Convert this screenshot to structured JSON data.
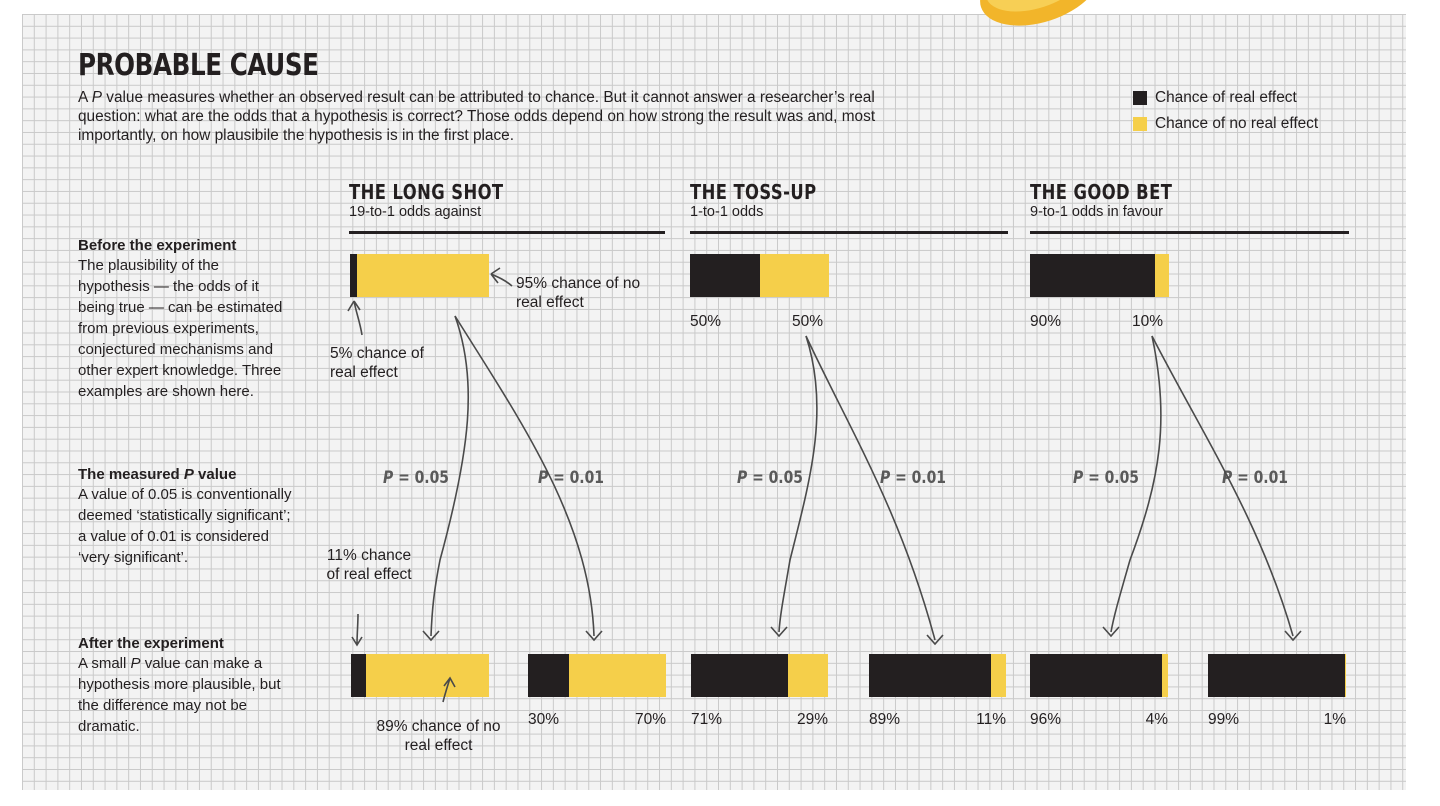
{
  "title": "PROBABLE CAUSE",
  "intro": {
    "part1": "A ",
    "p_letter": "P",
    "part2": " value measures whether an observed result can be attributed to chance. But it cannot answer a researcher’s real question: what are the odds that a hypothesis is correct? Those odds depend on how strong the result was and, most importantly, on how plausibile the hypothesis is in the first place."
  },
  "colors": {
    "real_effect": "#231f20",
    "no_real_effect": "#f5cf4a",
    "grid": "#c9c9c9",
    "pvalue_text": "#5a5a5a"
  },
  "legend": {
    "real": "Chance of real effect",
    "no_real": "Chance of no real effect"
  },
  "sidebar": {
    "before": {
      "heading": "Before the experiment",
      "body": "The plausibility of the hypothesis — the odds of it being true — can be estimated from previous experiments, conjectured mechanisms and other expert knowledge. Three examples are shown here."
    },
    "measured": {
      "heading_pre": "The measured ",
      "heading_p": "P",
      "heading_post": " value",
      "body": "A value of 0.05 is conventionally deemed ‘statistically significant’; a value of 0.01 is considered ‘very significant’."
    },
    "after": {
      "heading": "After the experiment",
      "body_pre": "A small ",
      "body_p": "P",
      "body_post": " value can make a hypothesis more plausible, but the difference may not be dramatic."
    }
  },
  "annotations": {
    "before_no_effect": "95% chance of no real effect",
    "before_real": "5% chance of real effect",
    "after_real": "11% chance of real effect",
    "after_no_effect": "89% chance of no real effect"
  },
  "chart_data": {
    "type": "bar",
    "legend_position": "top-right",
    "series_names": [
      "Chance of real effect",
      "Chance of no real effect"
    ],
    "scenarios": [
      {
        "name": "THE LONG SHOT",
        "odds": "19-to-1 odds against",
        "before": {
          "real": 5,
          "no_real": 95
        },
        "after": [
          {
            "p_label": "P",
            "p_value": "= 0.05",
            "real": 11,
            "no_real": 89,
            "real_label": "",
            "no_real_label": ""
          },
          {
            "p_label": "P",
            "p_value": "= 0.01",
            "real": 30,
            "no_real": 70,
            "real_label": "30%",
            "no_real_label": "70%"
          }
        ],
        "before_labels": {
          "real": "",
          "no_real": ""
        }
      },
      {
        "name": "THE TOSS-UP",
        "odds": "1-to-1 odds",
        "before": {
          "real": 50,
          "no_real": 50
        },
        "after": [
          {
            "p_label": "P",
            "p_value": "= 0.05",
            "real": 71,
            "no_real": 29,
            "real_label": "71%",
            "no_real_label": "29%"
          },
          {
            "p_label": "P",
            "p_value": "= 0.01",
            "real": 89,
            "no_real": 11,
            "real_label": "89%",
            "no_real_label": "11%"
          }
        ],
        "before_labels": {
          "real": "50%",
          "no_real": "50%"
        }
      },
      {
        "name": "THE GOOD BET",
        "odds": "9-to-1 odds in favour",
        "before": {
          "real": 90,
          "no_real": 10
        },
        "after": [
          {
            "p_label": "P",
            "p_value": "= 0.05",
            "real": 96,
            "no_real": 4,
            "real_label": "96%",
            "no_real_label": "4%"
          },
          {
            "p_label": "P",
            "p_value": "= 0.01",
            "real": 99,
            "no_real": 1,
            "real_label": "99%",
            "no_real_label": "1%"
          }
        ],
        "before_labels": {
          "real": "90%",
          "no_real": "10%"
        }
      }
    ]
  }
}
